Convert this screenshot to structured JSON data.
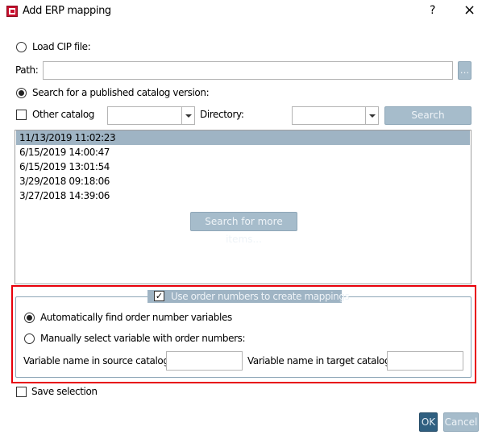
{
  "window": {
    "title": "Add ERP mapping",
    "help": "?",
    "close": "×"
  },
  "load_cip": {
    "label": "Load CIP file:",
    "selected": false
  },
  "path": {
    "label": "Path:",
    "value": "",
    "browse_label": "..."
  },
  "search_published": {
    "label": "Search for a published catalog version:",
    "selected": true
  },
  "other_catalog": {
    "label": "Other catalog",
    "checked": false,
    "value": ""
  },
  "directory": {
    "label": "Directory:",
    "value": ""
  },
  "search_button": "Search",
  "versions": [
    "11/13/2019 11:02:23",
    "6/15/2019 14:00:47",
    "6/15/2019 13:01:54",
    "3/29/2018 09:18:06",
    "3/27/2018 14:39:06"
  ],
  "selected_version": "11/13/2019 11:02:23",
  "more_items_button": "Search for more items...",
  "order_numbers": {
    "label": "Use order numbers to create mappings",
    "checked": true,
    "auto_label": "Automatically find order number variables",
    "manual_label": "Manually select variable with order numbers:",
    "mode": "auto",
    "source_label": "Variable name in source catalog:",
    "source_value": "",
    "target_label": "Variable name in target catalog:",
    "target_value": ""
  },
  "save_selection": {
    "label": "Save selection",
    "checked": false
  },
  "ok": "OK",
  "cancel": "Cancel",
  "colors": {
    "accent": "#2f5f80",
    "selection": "#9fb4c4",
    "disabled_button": "#a6bccb",
    "highlight_box": "#e8000b"
  }
}
